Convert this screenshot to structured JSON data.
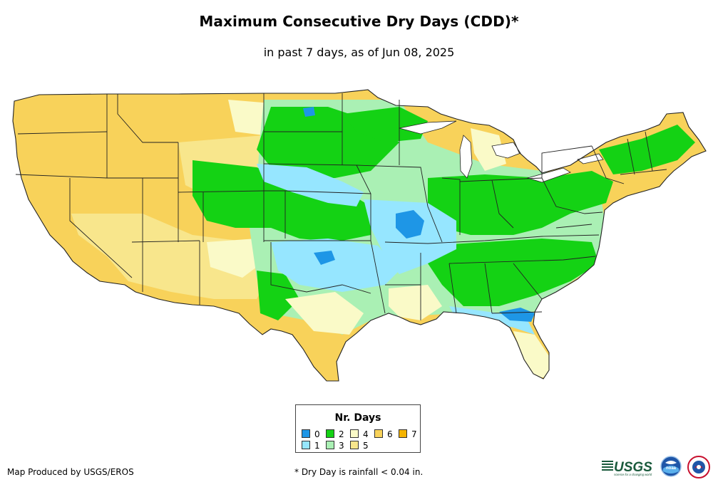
{
  "title": "Maximum Consecutive Dry Days (CDD)*",
  "subtitle": "in past 7 days, as of Jun 08, 2025",
  "legend": {
    "title": "Nr. Days",
    "items": [
      {
        "label": "0",
        "color": "#1e96e6"
      },
      {
        "label": "1",
        "color": "#96e6ff"
      },
      {
        "label": "2",
        "color": "#14d214"
      },
      {
        "label": "3",
        "color": "#aaf0b4"
      },
      {
        "label": "4",
        "color": "#fafac8"
      },
      {
        "label": "5",
        "color": "#f8e68c"
      },
      {
        "label": "6",
        "color": "#f8d25a"
      },
      {
        "label": "7",
        "color": "#f5b400"
      }
    ]
  },
  "credit": "Map Produced by USGS/EROS",
  "footnote": "* Dry Day is rainfall < 0.04 in.",
  "logos": {
    "usgs": "USGS",
    "usgs_tagline": "science for a changing world",
    "noaa": "noaa",
    "nws": "NATIONAL WEATHER SERVICE"
  }
}
